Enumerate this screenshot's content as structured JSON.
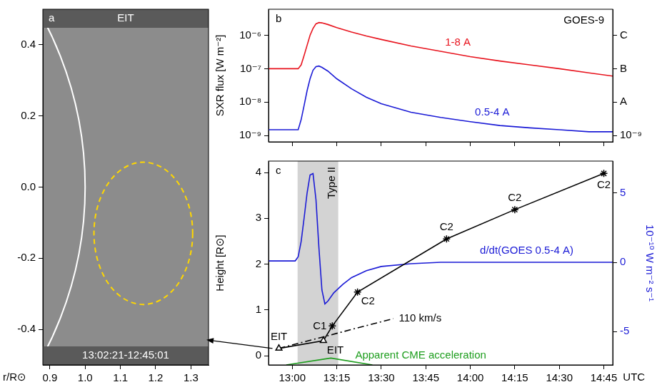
{
  "chart_data": [
    {
      "type": "image",
      "panel": "a",
      "title": "EIT",
      "subtitle": "13:02:21-12:45:01",
      "xlabel": "r/R⊙",
      "xlim": [
        0.88,
        1.35
      ],
      "xticks": [
        0.9,
        {
          "value": 1,
          "label": "1.0"
        },
        1.1,
        1.2,
        1.3
      ],
      "ylim": [
        -0.5,
        0.5
      ],
      "yticks": [
        -0.4,
        -0.2,
        {
          "value": 0,
          "label": "0.0"
        },
        0.2,
        0.4
      ],
      "grid": false,
      "circles": [
        {
          "x": 0,
          "y": 0,
          "rx": 1,
          "ry": 1,
          "color": "#ffffff",
          "line_style": "solid"
        },
        {
          "x": 1.165,
          "y": -0.13,
          "rx": 0.14,
          "ry": 0.2,
          "color": "#ffd700",
          "line_style": "dashed"
        }
      ]
    },
    {
      "type": "line",
      "panel": "b",
      "title": "GOES-9",
      "log": "y",
      "ylabel": "SXR flux [W m⁻²]",
      "tick_labels": "y",
      "grid": false,
      "xlim": [
        772,
        888
      ],
      "xticks": [
        {
          "value": 780,
          "label": "13:00"
        },
        {
          "value": 795,
          "label": "13:15"
        },
        {
          "value": 810,
          "label": "13:30"
        },
        {
          "value": 825,
          "label": "13:45"
        },
        {
          "value": 840,
          "label": "14:00"
        },
        {
          "value": 855,
          "label": "14:15"
        },
        {
          "value": 870,
          "label": "14:30"
        },
        {
          "value": 885,
          "label": "14:45"
        }
      ],
      "ylim": [
        6.5e-10,
        6e-06
      ],
      "yticks": [
        {
          "value": 1e-09,
          "label": "10⁻⁹"
        },
        {
          "value": 1e-08,
          "label": "10⁻⁸"
        },
        {
          "value": 1e-07,
          "label": "10⁻⁷"
        },
        {
          "value": 1e-06,
          "label": "10⁻⁶"
        }
      ],
      "y2lim": [
        6.5e-10,
        6e-06
      ],
      "y2ticks": [
        {
          "value": 1e-09,
          "label": "10⁻⁹"
        },
        {
          "value": 1e-08,
          "label": "A"
        },
        {
          "value": 1e-07,
          "label": "B"
        },
        {
          "value": 1e-06,
          "label": "C"
        }
      ],
      "series": [
        {
          "name": "1-8 A",
          "color": "#e8141e",
          "line_style": "solid",
          "x": [
            772,
            782,
            783,
            784,
            785,
            786,
            787,
            788,
            789,
            790,
            792,
            795,
            800,
            805,
            810,
            820,
            830,
            840,
            850,
            860,
            870,
            880,
            888
          ],
          "values": [
            1e-07,
            1e-07,
            1.3e-07,
            2.5e-07,
            5e-07,
            1e-06,
            1.6e-06,
            2.2e-06,
            2.4e-06,
            2.35e-06,
            2.1e-06,
            1.7e-06,
            1.25e-06,
            9.5e-07,
            7.5e-07,
            4.8e-07,
            3.3e-07,
            2.3e-07,
            1.7e-07,
            1.3e-07,
            1e-07,
            7.5e-08,
            6e-08
          ]
        },
        {
          "name": "0.5-4 A",
          "color": "#1a1ad6",
          "line_style": "solid",
          "x": [
            772,
            782,
            783,
            784,
            785,
            786,
            787,
            788,
            789,
            790,
            792,
            795,
            800,
            805,
            810,
            820,
            830,
            840,
            850,
            860,
            870,
            880,
            888
          ],
          "values": [
            1.5e-09,
            1.5e-09,
            3e-09,
            8e-09,
            2.2e-08,
            5e-08,
            9e-08,
            1.15e-07,
            1.2e-07,
            1.1e-07,
            8.5e-08,
            5e-08,
            2.5e-08,
            1.4e-08,
            9e-09,
            5e-09,
            3.5e-09,
            2.6e-09,
            2e-09,
            1.7e-09,
            1.5e-09,
            1.3e-09,
            1.3e-09
          ]
        }
      ]
    },
    {
      "type": "line",
      "panel": "c",
      "xlabel": "UTC",
      "ylabel": "Height [R⊙]",
      "y2label": "10⁻¹⁰ W m⁻² s⁻¹",
      "grid": false,
      "band": {
        "label": "Type II",
        "x": [
          781.8,
          795.5
        ],
        "color": "#d3d3d3"
      },
      "xlim": [
        772,
        888
      ],
      "xticks": [
        {
          "value": 780,
          "label": "13:00"
        },
        {
          "value": 795,
          "label": "13:15"
        },
        {
          "value": 810,
          "label": "13:30"
        },
        {
          "value": 825,
          "label": "13:45"
        },
        {
          "value": 840,
          "label": "14:00"
        },
        {
          "value": 855,
          "label": "14:15"
        },
        {
          "value": 870,
          "label": "14:30"
        },
        {
          "value": 885,
          "label": "14:45"
        }
      ],
      "ylim": [
        -0.2,
        4.25
      ],
      "yticks": [
        0,
        1,
        2,
        3,
        4
      ],
      "y2lim": [
        -7.4,
        7.3
      ],
      "y2ticks": [
        -5,
        0,
        5
      ],
      "series": [
        {
          "color": "#000000",
          "line_style": "solid",
          "x": [
            775.5,
            790.5,
            793.5,
            802,
            832,
            855,
            885
          ],
          "values": [
            0.16,
            0.33,
            0.65,
            1.39,
            2.55,
            3.19,
            3.98
          ],
          "point_labels": [
            "EIT",
            "EIT",
            "C1",
            "C2",
            "C2",
            "C2",
            "C2"
          ],
          "marker": [
            "triangle",
            "triangle",
            "star",
            "star",
            "star",
            "star",
            "star"
          ]
        },
        {
          "name": "110 km/s",
          "color": "#000000",
          "line_style": "dashdot",
          "x": [
            775.5,
            814
          ],
          "values": [
            0.16,
            0.81
          ]
        },
        {
          "name": "d/dt(GOES 0.5-4 A)",
          "color": "#1a1ad6",
          "line_style": "solid",
          "axis": "y2",
          "x": [
            772,
            781,
            782,
            783,
            784,
            785,
            786,
            787,
            788,
            789,
            790,
            791,
            792,
            794,
            797,
            800,
            805,
            810,
            820,
            830,
            888
          ],
          "values": [
            0.1,
            0.1,
            0.4,
            1.5,
            3.2,
            5.0,
            6.3,
            6.4,
            4.5,
            1.0,
            -2.0,
            -3.0,
            -2.8,
            -2.2,
            -1.6,
            -1.1,
            -0.6,
            -0.3,
            -0.1,
            0,
            0
          ]
        },
        {
          "name": "Apparent CME acceleration",
          "color": "#1e9e1e",
          "line_style": "solid",
          "x": [
            778,
            793,
            807
          ],
          "values": [
            -0.2,
            -0.05,
            -0.2
          ]
        }
      ]
    }
  ]
}
